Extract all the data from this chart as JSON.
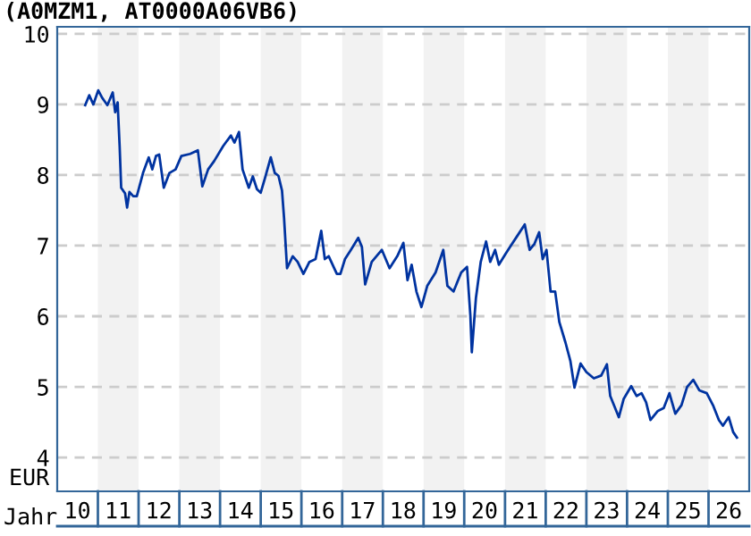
{
  "chart_data": {
    "type": "line",
    "title": "(A0MZM1, AT0000A06VB6)",
    "xlabel": "Jahr",
    "ylabel": "EUR",
    "x": [
      "2010-09-09",
      "2010-10-15",
      "2010-11-21",
      "2011-01-04",
      "2011-02-10",
      "2011-03-27",
      "2011-05-14",
      "2011-06-05",
      "2011-06-27",
      "2011-07-15",
      "2011-07-29",
      "2011-09-02",
      "2011-09-20",
      "2011-10-11",
      "2011-11-14",
      "2011-12-16",
      "2012-02-10",
      "2012-04-01",
      "2012-05-03",
      "2012-06-05",
      "2012-07-04",
      "2012-08-14",
      "2012-10-04",
      "2012-11-28",
      "2013-01-19",
      "2013-04-08",
      "2013-06-16",
      "2013-07-26",
      "2013-09-16",
      "2013-11-10",
      "2014-01-29",
      "2014-04-08",
      "2014-05-10",
      "2014-06-20",
      "2014-07-22",
      "2014-09-16",
      "2014-10-22",
      "2014-11-28",
      "2015-01-01",
      "2015-02-07",
      "2015-04-01",
      "2015-05-07",
      "2015-06-09",
      "2015-07-11",
      "2015-07-29",
      "2015-08-25",
      "2015-10-15",
      "2015-11-28",
      "2016-01-19",
      "2016-03-13",
      "2016-05-07",
      "2016-06-27",
      "2016-07-29",
      "2016-09-02",
      "2016-11-14",
      "2016-12-16",
      "2017-01-26",
      "2017-03-20",
      "2017-05-25",
      "2017-06-27",
      "2017-07-26",
      "2017-09-23",
      "2017-12-23",
      "2018-03-02",
      "2018-05-10",
      "2018-07-04",
      "2018-08-10",
      "2018-09-16",
      "2018-10-29",
      "2018-12-13",
      "2019-02-03",
      "2019-04-19",
      "2019-06-27",
      "2019-08-03",
      "2019-09-27",
      "2019-12-05",
      "2020-01-26",
      "2020-02-25",
      "2020-03-09",
      "2020-04-15",
      "2020-05-28",
      "2020-07-15",
      "2020-08-21",
      "2020-10-04",
      "2020-11-07",
      "2021-01-08",
      "2021-03-02",
      "2021-04-26",
      "2021-06-27",
      "2021-08-10",
      "2021-09-20",
      "2021-11-03",
      "2021-12-05",
      "2022-01-08",
      "2022-02-14",
      "2022-03-27",
      "2022-05-03",
      "2022-06-27",
      "2022-08-10",
      "2022-09-16",
      "2022-11-10",
      "2023-01-01",
      "2023-03-09",
      "2023-05-14",
      "2023-07-04",
      "2023-08-03",
      "2023-10-19",
      "2023-12-02",
      "2024-02-07",
      "2024-03-27",
      "2024-05-10",
      "2024-06-20",
      "2024-07-29",
      "2024-10-04",
      "2024-11-25",
      "2025-01-15",
      "2025-03-09",
      "2025-05-03",
      "2025-06-23",
      "2025-08-17",
      "2025-10-11",
      "2025-12-16",
      "2026-02-10",
      "2026-04-04",
      "2026-05-10",
      "2026-07-01",
      "2026-08-10",
      "2026-09-13"
    ],
    "series": [
      {
        "color": "#0033a0",
        "values": [
          8.99,
          9.13,
          9.0,
          9.2,
          9.09,
          8.99,
          9.17,
          8.89,
          9.03,
          8.41,
          7.82,
          7.74,
          7.54,
          7.76,
          7.7,
          7.7,
          8.03,
          8.25,
          8.08,
          8.27,
          8.29,
          7.82,
          8.03,
          8.08,
          8.27,
          8.3,
          8.35,
          7.84,
          8.08,
          8.2,
          8.41,
          8.56,
          8.46,
          8.61,
          8.08,
          7.82,
          7.98,
          7.8,
          7.75,
          7.95,
          8.25,
          8.03,
          7.99,
          7.78,
          7.4,
          6.68,
          6.85,
          6.77,
          6.6,
          6.77,
          6.81,
          7.21,
          6.81,
          6.85,
          6.6,
          6.6,
          6.81,
          6.94,
          7.11,
          6.98,
          6.45,
          6.77,
          6.94,
          6.68,
          6.85,
          7.04,
          6.51,
          6.73,
          6.35,
          6.13,
          6.43,
          6.62,
          6.94,
          6.43,
          6.35,
          6.62,
          6.7,
          6.01,
          5.49,
          6.26,
          6.77,
          7.06,
          6.77,
          6.94,
          6.73,
          6.89,
          7.02,
          7.15,
          7.3,
          6.94,
          7.02,
          7.19,
          6.81,
          6.94,
          6.35,
          6.35,
          5.92,
          5.63,
          5.37,
          4.99,
          5.33,
          5.21,
          5.12,
          5.16,
          5.32,
          4.87,
          4.57,
          4.83,
          5.01,
          4.87,
          4.91,
          4.78,
          4.53,
          4.66,
          4.7,
          4.91,
          4.62,
          4.74,
          5.0,
          5.1,
          4.95,
          4.91,
          4.74,
          4.53,
          4.45,
          4.57,
          4.36,
          4.28
        ]
      }
    ],
    "xlim": [
      "2010-01-01",
      "2027-01-01"
    ],
    "xticks": [
      {
        "value": "2010-07-01",
        "label": "10"
      },
      {
        "value": "2011-07-01",
        "label": "11"
      },
      {
        "value": "2012-07-01",
        "label": "12"
      },
      {
        "value": "2013-07-01",
        "label": "13"
      },
      {
        "value": "2014-07-01",
        "label": "14"
      },
      {
        "value": "2015-07-01",
        "label": "15"
      },
      {
        "value": "2016-07-01",
        "label": "16"
      },
      {
        "value": "2017-07-01",
        "label": "17"
      },
      {
        "value": "2018-07-01",
        "label": "18"
      },
      {
        "value": "2019-07-01",
        "label": "19"
      },
      {
        "value": "2020-07-01",
        "label": "20"
      },
      {
        "value": "2021-07-01",
        "label": "21"
      },
      {
        "value": "2022-07-01",
        "label": "22"
      },
      {
        "value": "2023-07-01",
        "label": "23"
      },
      {
        "value": "2024-07-01",
        "label": "24"
      },
      {
        "value": "2025-07-01",
        "label": "25"
      },
      {
        "value": "2026-07-01",
        "label": "26"
      }
    ],
    "ylim": [
      3.52,
      10.1
    ],
    "yticks": [
      4,
      5,
      6,
      7,
      8,
      9,
      10
    ],
    "bands": [
      {
        "axis": "x",
        "from": "2011-01-01",
        "to": "2012-01-01",
        "color": "#f2f2f2"
      },
      {
        "axis": "x",
        "from": "2013-01-01",
        "to": "2014-01-01",
        "color": "#f2f2f2"
      },
      {
        "axis": "x",
        "from": "2015-01-01",
        "to": "2016-01-01",
        "color": "#f2f2f2"
      },
      {
        "axis": "x",
        "from": "2017-01-01",
        "to": "2018-01-01",
        "color": "#f2f2f2"
      },
      {
        "axis": "x",
        "from": "2019-01-01",
        "to": "2020-01-01",
        "color": "#f2f2f2"
      },
      {
        "axis": "x",
        "from": "2021-01-01",
        "to": "2022-01-01",
        "color": "#f2f2f2"
      },
      {
        "axis": "x",
        "from": "2023-01-01",
        "to": "2024-01-01",
        "color": "#f2f2f2"
      },
      {
        "axis": "x",
        "from": "2025-01-01",
        "to": "2026-01-01",
        "color": "#f2f2f2"
      }
    ],
    "grid": "y",
    "marker": "none",
    "line_style": "solid"
  }
}
